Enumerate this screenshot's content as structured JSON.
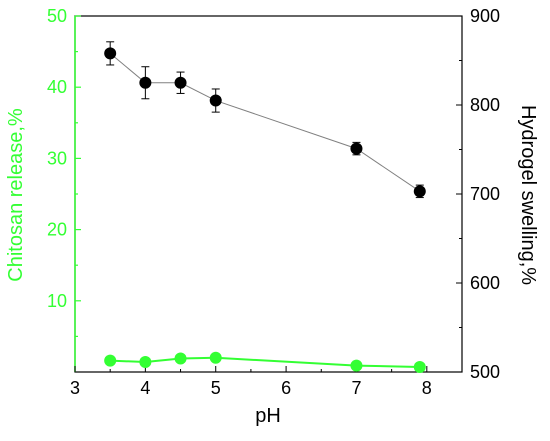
{
  "chart_data": {
    "type": "line",
    "x": [
      3.5,
      4,
      4.5,
      5,
      7,
      7.9
    ],
    "xlabel": "pH",
    "xlim": [
      3,
      8.5
    ],
    "xticks": [
      3,
      4,
      5,
      6,
      7,
      8
    ],
    "y_left": {
      "label": "Chitosan release,%",
      "lim": [
        0,
        50
      ],
      "ticks": [
        10,
        20,
        30,
        40,
        50
      ],
      "color": "#33ff33"
    },
    "y_right": {
      "label": "Hydrogel swelling,%",
      "lim": [
        500,
        900
      ],
      "ticks": [
        500,
        600,
        700,
        800,
        900
      ],
      "color": "#000000"
    },
    "series": [
      {
        "axis": "left",
        "color": "#33ff33",
        "values": [
          1.6,
          1.4,
          1.9,
          2.0,
          0.9,
          0.7
        ]
      },
      {
        "axis": "right",
        "color": "#000000",
        "line_color": "#808080",
        "values": [
          858,
          825,
          825,
          805,
          751,
          703
        ],
        "errors": [
          13,
          18,
          12,
          13,
          7,
          7
        ]
      }
    ]
  }
}
